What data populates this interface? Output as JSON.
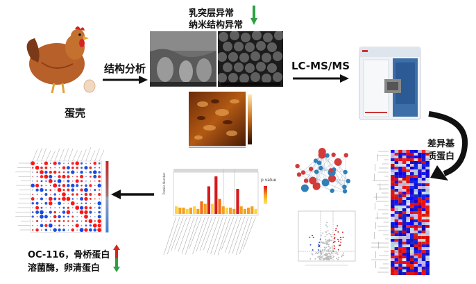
{
  "egg_label": "蛋壳",
  "step_structural": "结构分析",
  "finding_line1": "乳突层异常",
  "finding_line2": "纳米结构异常",
  "step_lcms": "LC-MS/MS",
  "diff_line1": "差异基",
  "diff_line2": "质蛋白",
  "chart_pvalue_label": "p value",
  "result_line1": "OC-116，骨桥蛋白",
  "result_line2": "溶菌酶，卵清蛋白",
  "colors": {
    "up_arrow": "#d7261e",
    "down_arrow": "#2ea043",
    "arrow": "#111111"
  }
}
